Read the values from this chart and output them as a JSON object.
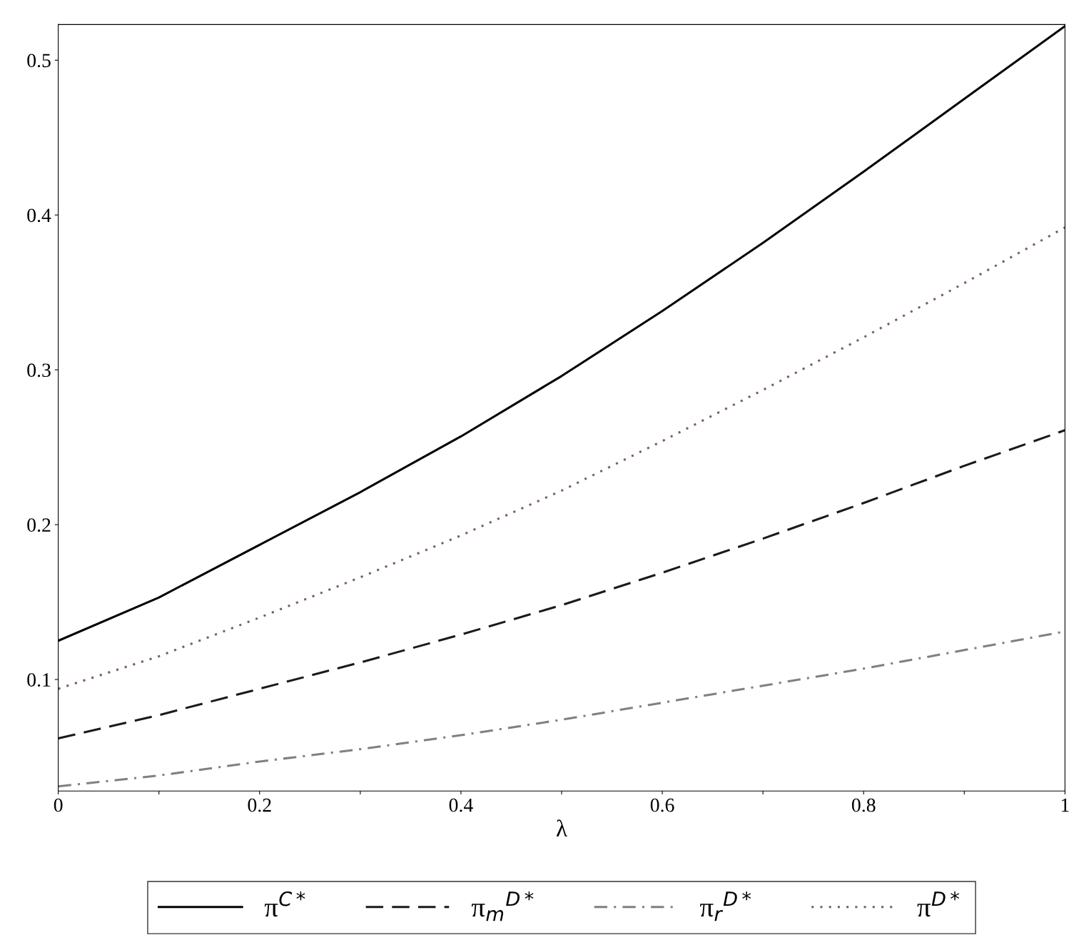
{
  "chart_data": {
    "type": "line",
    "xlabel": "λ",
    "x": [
      0,
      0.1,
      0.2,
      0.3,
      0.4,
      0.5,
      0.6,
      0.7,
      0.8,
      0.9,
      1
    ],
    "series": [
      {
        "name": "π$^{C*}$",
        "color": "#000000",
        "line_style": "solid",
        "values": [
          0.125,
          0.153,
          0.187,
          0.221,
          0.257,
          0.296,
          0.338,
          0.382,
          0.428,
          0.475,
          0.522
        ]
      },
      {
        "name": "π$_{m}$$^{D*}$",
        "color": "#1a1a1a",
        "line_style": "dashed",
        "values": [
          0.062,
          0.077,
          0.094,
          0.111,
          0.129,
          0.148,
          0.169,
          0.191,
          0.214,
          0.238,
          0.261
        ]
      },
      {
        "name": "π$_{r}$$^{D*}$",
        "color": "#808080",
        "line_style": "dashdot",
        "values": [
          0.031,
          0.038,
          0.047,
          0.055,
          0.064,
          0.074,
          0.085,
          0.096,
          0.107,
          0.119,
          0.131
        ]
      },
      {
        "name": "π$^{D*}$",
        "color": "#7a5f5f",
        "line_style": "dotted",
        "values": [
          0.094,
          0.115,
          0.14,
          0.166,
          0.193,
          0.222,
          0.254,
          0.287,
          0.321,
          0.356,
          0.392
        ]
      }
    ],
    "xlim": [
      0,
      1
    ],
    "ylim": [
      0.028,
      0.523
    ],
    "xticks": [
      0,
      {
        "value": 0.1,
        "label": null
      },
      0.2,
      {
        "value": 0.3,
        "label": null
      },
      0.4,
      {
        "value": 0.5,
        "label": null
      },
      0.6,
      {
        "value": 0.7,
        "label": null
      },
      0.8,
      {
        "value": 0.9,
        "label": null
      },
      1
    ],
    "yticks": [
      0.1,
      0.2,
      0.3,
      0.4,
      0.5
    ],
    "grid": false,
    "legend": "bottom"
  }
}
